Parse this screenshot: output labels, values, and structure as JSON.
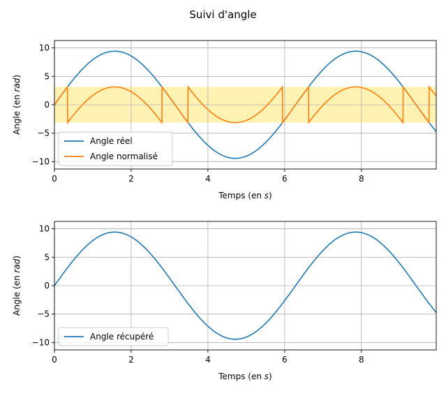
{
  "figure": {
    "title": "Suivi d'angle"
  },
  "chart_data": [
    {
      "type": "line",
      "xlabel": "Temps (en s)",
      "xlabel_parts": [
        "Temps (en ",
        "s",
        ")"
      ],
      "ylabel": "Angle (en rad)",
      "ylabel_parts": [
        "Angle (en ",
        "rad",
        ")"
      ],
      "xlim": [
        0,
        9.95
      ],
      "ylim": [
        -11.3,
        11.3
      ],
      "xticks": [
        0,
        2,
        4,
        6,
        8
      ],
      "yticks": [
        -10,
        -5,
        0,
        5,
        10
      ],
      "ytick_labels": [
        "−10",
        "−5",
        "0",
        "5",
        "10"
      ],
      "grid": true,
      "legend_position": "lower-left",
      "band": {
        "y0": -3.14159,
        "y1": 3.14159,
        "color": "#fff2b3"
      },
      "series": [
        {
          "name": "Angle réel",
          "color": "#1f77b4",
          "function": "3*pi*sin(t)",
          "x_range": [
            0,
            9.95
          ]
        },
        {
          "name": "Angle normalisé",
          "color": "#ff7f0e",
          "function": "wrap(3*pi*sin(t)) to [-pi, pi)",
          "x_range": [
            0,
            9.95
          ]
        }
      ]
    },
    {
      "type": "line",
      "xlabel": "Temps (en s)",
      "xlabel_parts": [
        "Temps (en ",
        "s",
        ")"
      ],
      "ylabel": "Angle (en rad)",
      "ylabel_parts": [
        "Angle (en ",
        "rad",
        ")"
      ],
      "xlim": [
        0,
        9.95
      ],
      "ylim": [
        -11.3,
        11.3
      ],
      "xticks": [
        0,
        2,
        4,
        6,
        8
      ],
      "yticks": [
        -10,
        -5,
        0,
        5,
        10
      ],
      "ytick_labels": [
        "−10",
        "−5",
        "0",
        "5",
        "10"
      ],
      "grid": true,
      "legend_position": "lower-left",
      "series": [
        {
          "name": "Angle récupéré",
          "color": "#1f77b4",
          "function": "3*pi*sin(t)",
          "x_range": [
            0,
            9.95
          ]
        }
      ]
    }
  ]
}
